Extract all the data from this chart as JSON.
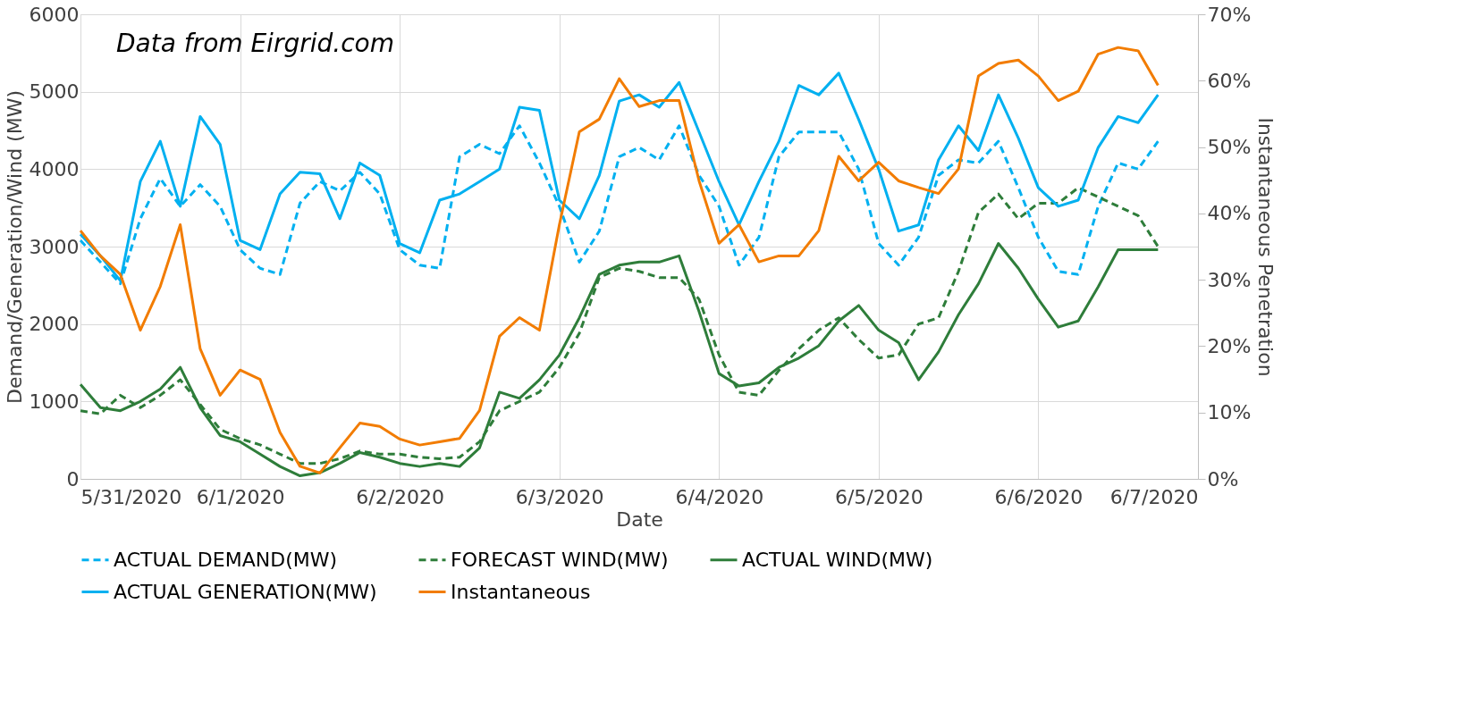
{
  "chart_data": {
    "type": "line",
    "xlabel": "Date",
    "ylabel": "Demand/Generation/Wind (MW)",
    "y2label": "Instantaneous Penetration",
    "annotations": [
      "Data from Eirgrid.com"
    ],
    "x": [
      "2020-05-31T00:00",
      "2020-05-31T03:00",
      "2020-05-31T06:00",
      "2020-05-31T09:00",
      "2020-05-31T12:00",
      "2020-05-31T15:00",
      "2020-05-31T18:00",
      "2020-05-31T21:00",
      "2020-06-01T00:00",
      "2020-06-01T03:00",
      "2020-06-01T06:00",
      "2020-06-01T09:00",
      "2020-06-01T12:00",
      "2020-06-01T15:00",
      "2020-06-01T18:00",
      "2020-06-01T21:00",
      "2020-06-02T00:00",
      "2020-06-02T03:00",
      "2020-06-02T06:00",
      "2020-06-02T09:00",
      "2020-06-02T12:00",
      "2020-06-02T15:00",
      "2020-06-02T18:00",
      "2020-06-02T21:00",
      "2020-06-03T00:00",
      "2020-06-03T03:00",
      "2020-06-03T06:00",
      "2020-06-03T09:00",
      "2020-06-03T12:00",
      "2020-06-03T15:00",
      "2020-06-03T18:00",
      "2020-06-03T21:00",
      "2020-06-04T00:00",
      "2020-06-04T03:00",
      "2020-06-04T06:00",
      "2020-06-04T09:00",
      "2020-06-04T12:00",
      "2020-06-04T15:00",
      "2020-06-04T18:00",
      "2020-06-04T21:00",
      "2020-06-05T00:00",
      "2020-06-05T03:00",
      "2020-06-05T06:00",
      "2020-06-05T09:00",
      "2020-06-05T12:00",
      "2020-06-05T15:00",
      "2020-06-05T18:00",
      "2020-06-05T21:00",
      "2020-06-06T00:00",
      "2020-06-06T03:00",
      "2020-06-06T06:00",
      "2020-06-06T09:00",
      "2020-06-06T12:00",
      "2020-06-06T15:00",
      "2020-06-06T18:00"
    ],
    "series": [
      {
        "name": "ACTUAL DEMAND(MW)",
        "color": "#00b0f0",
        "line_style": "dashed",
        "values": [
          3080,
          2800,
          2520,
          3360,
          3880,
          3520,
          3800,
          3520,
          2960,
          2720,
          2640,
          3560,
          3840,
          3720,
          3960,
          3680,
          2960,
          2760,
          2720,
          4160,
          4320,
          4200,
          4560,
          4080,
          3520,
          2800,
          3200,
          4160,
          4280,
          4120,
          4560,
          3920,
          3520,
          2760,
          3120,
          4160,
          4480,
          4480,
          4480,
          4000,
          3040,
          2760,
          3120,
          3920,
          4120,
          4080,
          4360,
          3760,
          3120,
          2680,
          2640,
          3520,
          4080,
          4000,
          4360
        ]
      },
      {
        "name": "FORECAST WIND(MW)",
        "color": "#2e7d3a",
        "line_style": "dashed",
        "values": [
          880,
          840,
          1080,
          920,
          1080,
          1280,
          960,
          640,
          520,
          440,
          320,
          200,
          200,
          260,
          360,
          320,
          320,
          280,
          260,
          280,
          480,
          880,
          1000,
          1120,
          1440,
          1880,
          2600,
          2720,
          2680,
          2600,
          2600,
          2320,
          1600,
          1120,
          1080,
          1400,
          1680,
          1920,
          2080,
          1800,
          1560,
          1600,
          2000,
          2080,
          2680,
          3440,
          3680,
          3360,
          3560,
          3560,
          3760,
          3640,
          3520,
          3400,
          3000
        ]
      },
      {
        "name": "ACTUAL WIND(MW)",
        "color": "#2e7d3a",
        "line_style": "solid",
        "values": [
          1220,
          920,
          880,
          1000,
          1160,
          1440,
          920,
          560,
          480,
          320,
          160,
          40,
          80,
          200,
          340,
          280,
          200,
          160,
          200,
          160,
          400,
          1120,
          1040,
          1280,
          1600,
          2080,
          2640,
          2760,
          2800,
          2800,
          2880,
          2160,
          1360,
          1200,
          1240,
          1440,
          1560,
          1720,
          2040,
          2240,
          1920,
          1760,
          1280,
          1640,
          2120,
          2520,
          3040,
          2720,
          2320,
          1960,
          2040,
          2480,
          2960,
          2960,
          2960
        ]
      },
      {
        "name": "ACTUAL GENERATION(MW)",
        "color": "#00b0f0",
        "line_style": "solid",
        "values": [
          3160,
          2880,
          2560,
          3840,
          4360,
          3520,
          4680,
          4320,
          3080,
          2960,
          3680,
          3960,
          3940,
          3360,
          4080,
          3920,
          3040,
          2920,
          3600,
          3680,
          3840,
          4000,
          4800,
          4760,
          3600,
          3360,
          3920,
          4880,
          4960,
          4800,
          5120,
          4480,
          3840,
          3280,
          3840,
          4360,
          5080,
          4960,
          5240,
          4640,
          4000,
          3200,
          3280,
          4120,
          4560,
          4240,
          4960,
          4400,
          3760,
          3520,
          3600,
          4280,
          4680,
          4600,
          4960
        ]
      },
      {
        "name": "Instantaneous",
        "color": "#f27c00",
        "line_style": "solid",
        "axis": "y2",
        "values": [
          37.4,
          33.6,
          30.8,
          22.4,
          29,
          38.3,
          19.6,
          12.6,
          16.4,
          15,
          7,
          1.9,
          0.9,
          4.7,
          8.4,
          7.9,
          6,
          5.1,
          5.6,
          6.1,
          10.3,
          21.5,
          24.3,
          22.4,
          38.3,
          52.3,
          54.2,
          60.3,
          56.1,
          57,
          57,
          44.9,
          35.5,
          38.3,
          32.7,
          33.6,
          33.6,
          37.4,
          48.6,
          44.9,
          47.7,
          44.9,
          43.9,
          43,
          46.7,
          60.7,
          62.6,
          63.1,
          60.7,
          57,
          58.4,
          64,
          65,
          64.5,
          59.3
        ]
      }
    ],
    "xlim": [
      "2020-05-31",
      "2020-06-07"
    ],
    "xticks": [
      {
        "value": "2020-05-31",
        "label": "5/31/2020"
      },
      {
        "value": "2020-06-01",
        "label": "6/1/2020"
      },
      {
        "value": "2020-06-02",
        "label": "6/2/2020"
      },
      {
        "value": "2020-06-03",
        "label": "6/3/2020"
      },
      {
        "value": "2020-06-04",
        "label": "6/4/2020"
      },
      {
        "value": "2020-06-05",
        "label": "6/5/2020"
      },
      {
        "value": "2020-06-06",
        "label": "6/6/2020"
      },
      {
        "value": "2020-06-07",
        "label": "6/7/2020"
      }
    ],
    "ylim": [
      0,
      6000
    ],
    "yticks": [
      0,
      1000,
      2000,
      3000,
      4000,
      5000,
      6000
    ],
    "y2lim": [
      0,
      70
    ],
    "y2ticks": [
      {
        "value": 0,
        "label": "0%"
      },
      {
        "value": 10,
        "label": "10%"
      },
      {
        "value": 20,
        "label": "20%"
      },
      {
        "value": 30,
        "label": "30%"
      },
      {
        "value": 40,
        "label": "40%"
      },
      {
        "value": 50,
        "label": "50%"
      },
      {
        "value": 60,
        "label": "60%"
      },
      {
        "value": 70,
        "label": "70%"
      }
    ],
    "grid": true,
    "legend": "bottom",
    "marker": "none"
  }
}
